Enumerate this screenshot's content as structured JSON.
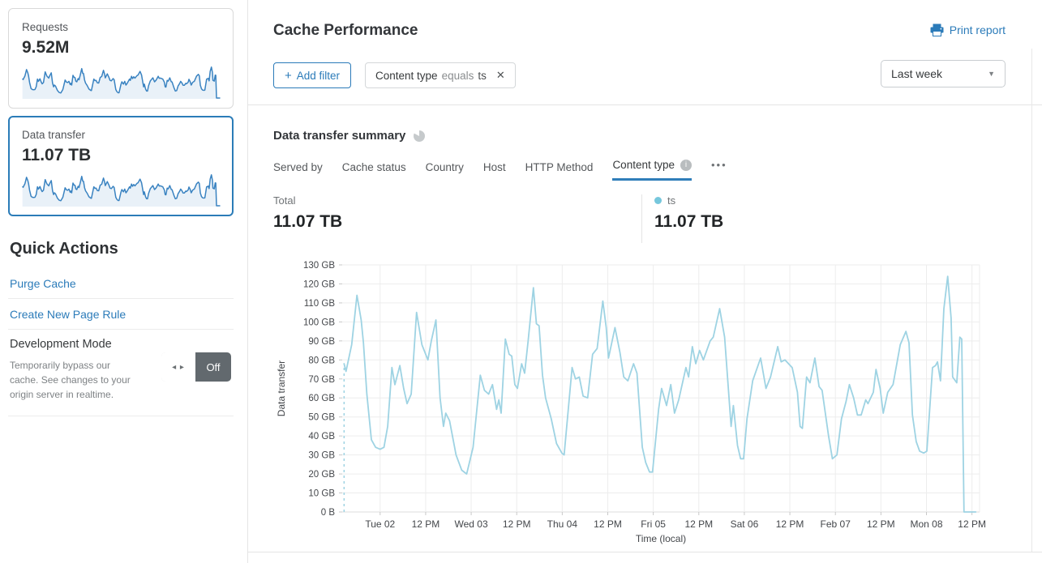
{
  "sidebar": {
    "cards": [
      {
        "label": "Requests",
        "value": "9.52M",
        "selected": false
      },
      {
        "label": "Data transfer",
        "value": "11.07 TB",
        "selected": true
      }
    ],
    "quick_actions": {
      "title": "Quick Actions",
      "links": [
        "Purge Cache",
        "Create New Page Rule"
      ],
      "dev_mode": {
        "title": "Development Mode",
        "description": "Temporarily bypass our cache. See changes to your origin server in realtime.",
        "toggle_label": "Off"
      }
    }
  },
  "header": {
    "title": "Cache Performance",
    "print_label": "Print report"
  },
  "filters": {
    "add_label": "Add filter",
    "chip": {
      "field": "Content type",
      "operator": "equals",
      "value": "ts"
    },
    "range_selected": "Last week"
  },
  "summary": {
    "title": "Data transfer summary",
    "tabs": [
      {
        "label": "Served by",
        "active": false
      },
      {
        "label": "Cache status",
        "active": false
      },
      {
        "label": "Country",
        "active": false
      },
      {
        "label": "Host",
        "active": false
      },
      {
        "label": "HTTP Method",
        "active": false
      },
      {
        "label": "Content type",
        "active": true,
        "has_info": true
      }
    ],
    "total_label": "Total",
    "total_value": "11.07 TB",
    "legend": {
      "name": "ts",
      "value": "11.07 TB",
      "color": "#76c7dc"
    }
  },
  "icons": {
    "plus": "+",
    "close": "✕",
    "caret": "▼",
    "ellipsis": "•••",
    "toggle_arrows": "◂ ▸",
    "info": "i"
  },
  "colors": {
    "accent": "#2b7bb9",
    "chart_line": "#9ed3e3",
    "legend_dot": "#76c7dc",
    "sparkline_stroke": "#3a83c1",
    "sparkline_fill": "#e9f1f8",
    "selected_card_border": "#2b7cb8",
    "toggle_off_bg": "#62696e",
    "grid": "#ededed"
  },
  "chart_data": {
    "type": "line",
    "title": "Data transfer summary",
    "xlabel": "Time (local)",
    "ylabel": "Data transfer",
    "ylim": [
      0,
      130
    ],
    "yticks": [
      "0 B",
      "10 GB",
      "20 GB",
      "30 GB",
      "40 GB",
      "50 GB",
      "60 GB",
      "70 GB",
      "80 GB",
      "90 GB",
      "100 GB",
      "110 GB",
      "120 GB",
      "130 GB"
    ],
    "xlim_hours": [
      0,
      168
    ],
    "xticks": [
      {
        "t": 10,
        "label": "Tue 02"
      },
      {
        "t": 22,
        "label": "12 PM"
      },
      {
        "t": 34,
        "label": "Wed 03"
      },
      {
        "t": 46,
        "label": "12 PM"
      },
      {
        "t": 58,
        "label": "Thu 04"
      },
      {
        "t": 70,
        "label": "12 PM"
      },
      {
        "t": 82,
        "label": "Fri 05"
      },
      {
        "t": 94,
        "label": "12 PM"
      },
      {
        "t": 106,
        "label": "Sat 06"
      },
      {
        "t": 118,
        "label": "12 PM"
      },
      {
        "t": 130,
        "label": "Feb 07"
      },
      {
        "t": 142,
        "label": "12 PM"
      },
      {
        "t": 154,
        "label": "Mon 08"
      },
      {
        "t": 166,
        "label": "12 PM"
      }
    ],
    "grid": true,
    "leading_dashed": {
      "t": 0.5,
      "from_gb": 0,
      "to_gb": 78
    },
    "series": [
      {
        "name": "ts",
        "unit": "GB",
        "color": "#9ed3e3",
        "points": [
          [
            0.5,
            78
          ],
          [
            1,
            74
          ],
          [
            2.5,
            88
          ],
          [
            3.9,
            114
          ],
          [
            5,
            101
          ],
          [
            5.6,
            89
          ],
          [
            6.5,
            62
          ],
          [
            7.7,
            38
          ],
          [
            8.8,
            34
          ],
          [
            10,
            33
          ],
          [
            11,
            34
          ],
          [
            12,
            45
          ],
          [
            13.1,
            76
          ],
          [
            13.9,
            67
          ],
          [
            15.2,
            77
          ],
          [
            16.2,
            65
          ],
          [
            17.1,
            57
          ],
          [
            18.2,
            62
          ],
          [
            19.6,
            105
          ],
          [
            21,
            88
          ],
          [
            22.6,
            80
          ],
          [
            23.5,
            90
          ],
          [
            24.7,
            101
          ],
          [
            25.8,
            60
          ],
          [
            26.7,
            45
          ],
          [
            27.3,
            52
          ],
          [
            28.3,
            48
          ],
          [
            30,
            30
          ],
          [
            31.5,
            22
          ],
          [
            32.8,
            20
          ],
          [
            34.5,
            34
          ],
          [
            36.4,
            72
          ],
          [
            37.5,
            64
          ],
          [
            38.6,
            62
          ],
          [
            39.6,
            67
          ],
          [
            40.7,
            54
          ],
          [
            41.3,
            59
          ],
          [
            41.9,
            52
          ],
          [
            43,
            91
          ],
          [
            44,
            83
          ],
          [
            44.7,
            82
          ],
          [
            45.5,
            67
          ],
          [
            46.2,
            65
          ],
          [
            47.3,
            78
          ],
          [
            48.1,
            73
          ],
          [
            49,
            90
          ],
          [
            50.4,
            118
          ],
          [
            51.2,
            99
          ],
          [
            51.9,
            98
          ],
          [
            52.8,
            72
          ],
          [
            53.6,
            60
          ],
          [
            55.1,
            49
          ],
          [
            56.5,
            36
          ],
          [
            57.9,
            31
          ],
          [
            58.5,
            30
          ],
          [
            60.6,
            76
          ],
          [
            61.5,
            70
          ],
          [
            62.5,
            71
          ],
          [
            63.5,
            61
          ],
          [
            64.7,
            60
          ],
          [
            66,
            83
          ],
          [
            67.2,
            86
          ],
          [
            68.7,
            111
          ],
          [
            69.6,
            97
          ],
          [
            70.2,
            81
          ],
          [
            71.9,
            97
          ],
          [
            73.2,
            84
          ],
          [
            74.2,
            71
          ],
          [
            75.3,
            69
          ],
          [
            76.8,
            78
          ],
          [
            77.7,
            73
          ],
          [
            79.1,
            34
          ],
          [
            80,
            26
          ],
          [
            81,
            21
          ],
          [
            81.8,
            21
          ],
          [
            83.4,
            54
          ],
          [
            84.2,
            65
          ],
          [
            85.5,
            56
          ],
          [
            86.6,
            67
          ],
          [
            87.6,
            52
          ],
          [
            88.7,
            59
          ],
          [
            90.6,
            76
          ],
          [
            91.3,
            71
          ],
          [
            92.3,
            87
          ],
          [
            93.2,
            78
          ],
          [
            94.2,
            85
          ],
          [
            95.2,
            80
          ],
          [
            97,
            90
          ],
          [
            97.8,
            92
          ],
          [
            99.5,
            107
          ],
          [
            100.8,
            92
          ],
          [
            102.5,
            45
          ],
          [
            103.1,
            56
          ],
          [
            104.2,
            35
          ],
          [
            105,
            28
          ],
          [
            105.8,
            28
          ],
          [
            106.7,
            49
          ],
          [
            108.2,
            69
          ],
          [
            110.3,
            81
          ],
          [
            111.7,
            65
          ],
          [
            112.9,
            71
          ],
          [
            114.8,
            87
          ],
          [
            115.7,
            79
          ],
          [
            116.7,
            80
          ],
          [
            118.6,
            76
          ],
          [
            120,
            63
          ],
          [
            120.7,
            45
          ],
          [
            121.3,
            44
          ],
          [
            122.4,
            71
          ],
          [
            123.3,
            68
          ],
          [
            124.6,
            81
          ],
          [
            125.7,
            66
          ],
          [
            126.5,
            64
          ],
          [
            128.2,
            40
          ],
          [
            129.2,
            28
          ],
          [
            130.4,
            30
          ],
          [
            131.6,
            49
          ],
          [
            132.8,
            58
          ],
          [
            133.7,
            67
          ],
          [
            134.8,
            60
          ],
          [
            135.8,
            51
          ],
          [
            136.8,
            51
          ],
          [
            138,
            59
          ],
          [
            138.6,
            57
          ],
          [
            140,
            63
          ],
          [
            140.7,
            75
          ],
          [
            141.8,
            65
          ],
          [
            142.6,
            52
          ],
          [
            143.8,
            63
          ],
          [
            145.2,
            67
          ],
          [
            147.1,
            88
          ],
          [
            148.6,
            95
          ],
          [
            149.4,
            89
          ],
          [
            150.3,
            51
          ],
          [
            151.3,
            37
          ],
          [
            152.2,
            32
          ],
          [
            153.3,
            31
          ],
          [
            154.1,
            32
          ],
          [
            155.6,
            76
          ],
          [
            156.4,
            77
          ],
          [
            156.9,
            79
          ],
          [
            157.7,
            69
          ],
          [
            158.6,
            107
          ],
          [
            159.6,
            124
          ],
          [
            160.5,
            102
          ],
          [
            160.9,
            71
          ],
          [
            162,
            68
          ],
          [
            162.8,
            92
          ],
          [
            163.3,
            91
          ],
          [
            163.9,
            0
          ],
          [
            167,
            0
          ]
        ]
      }
    ]
  }
}
